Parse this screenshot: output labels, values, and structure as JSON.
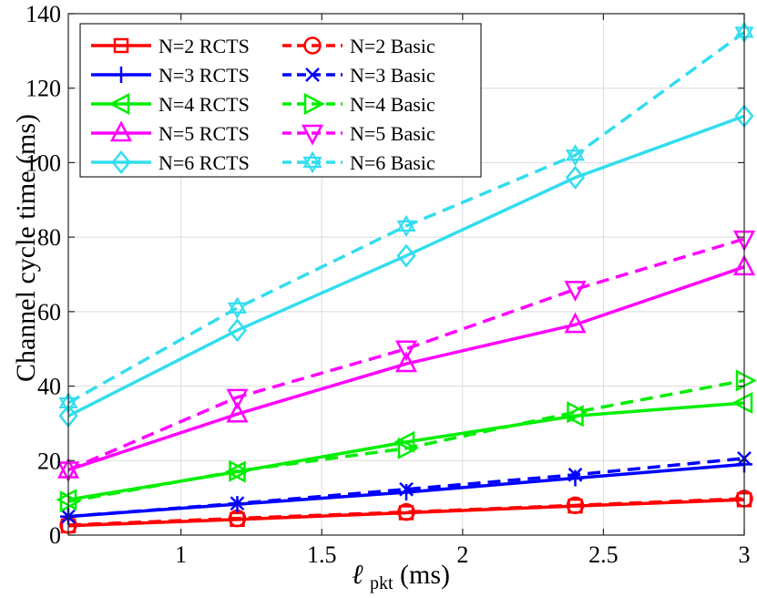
{
  "chart_data": {
    "type": "line",
    "title": "",
    "xlabel": "ℓ",
    "xlabel_sub": "pkt",
    "xlabel_suffix": " (ms)",
    "ylabel": "Channel cycle time (ms)",
    "xlim": [
      0.6,
      3.0
    ],
    "ylim": [
      0,
      140
    ],
    "xticks": [
      1,
      1.5,
      2,
      2.5,
      3
    ],
    "xtick_labels": [
      "1",
      "1.5",
      "2",
      "2.5",
      "3"
    ],
    "yticks": [
      0,
      20,
      40,
      60,
      80,
      100,
      120,
      140
    ],
    "ytick_labels": [
      "0",
      "20",
      "40",
      "60",
      "80",
      "100",
      "120",
      "140"
    ],
    "grid": true,
    "legend_position": "top-left",
    "x": [
      0.6,
      1.2,
      1.8,
      2.4,
      3.0
    ],
    "series": [
      {
        "name": "N=2 RCTS",
        "color": "#ff0000",
        "dash": "solid",
        "marker": "square",
        "values": [
          2.5,
          4.2,
          6.0,
          7.8,
          9.5
        ]
      },
      {
        "name": "N=2 Basic",
        "color": "#ff0000",
        "dash": "dashed",
        "marker": "circle",
        "values": [
          2.7,
          4.5,
          6.2,
          8.0,
          9.8
        ]
      },
      {
        "name": "N=3 RCTS",
        "color": "#0000ff",
        "dash": "solid",
        "marker": "plus",
        "values": [
          5.0,
          8.3,
          11.5,
          15.3,
          19.0
        ]
      },
      {
        "name": "N=3 Basic",
        "color": "#0000ff",
        "dash": "dashed",
        "marker": "x",
        "values": [
          5.0,
          8.5,
          12.3,
          16.2,
          20.6
        ]
      },
      {
        "name": "N=4 RCTS",
        "color": "#00ee00",
        "dash": "solid",
        "marker": "triangle-left",
        "values": [
          9.5,
          17.0,
          25.0,
          32.0,
          35.5
        ]
      },
      {
        "name": "N=4 Basic",
        "color": "#00ee00",
        "dash": "dashed",
        "marker": "triangle-right",
        "values": [
          9.0,
          17.2,
          23.3,
          33.0,
          41.5
        ]
      },
      {
        "name": "N=5 RCTS",
        "color": "#ff00ff",
        "dash": "solid",
        "marker": "triangle-up",
        "values": [
          17.5,
          32.5,
          46.0,
          56.5,
          72.0
        ]
      },
      {
        "name": "N=5 Basic",
        "color": "#ff00ff",
        "dash": "dashed",
        "marker": "triangle-down",
        "values": [
          17.5,
          37.0,
          50.0,
          66.0,
          79.5
        ]
      },
      {
        "name": "N=6 RCTS",
        "color": "#33ddee",
        "dash": "solid",
        "marker": "diamond",
        "values": [
          32.0,
          55.0,
          75.0,
          96.0,
          112.5
        ]
      },
      {
        "name": "N=6 Basic",
        "color": "#33ddee",
        "dash": "dashed",
        "marker": "hexagram",
        "values": [
          35.5,
          61.0,
          83.0,
          102.0,
          135.0
        ]
      }
    ]
  }
}
